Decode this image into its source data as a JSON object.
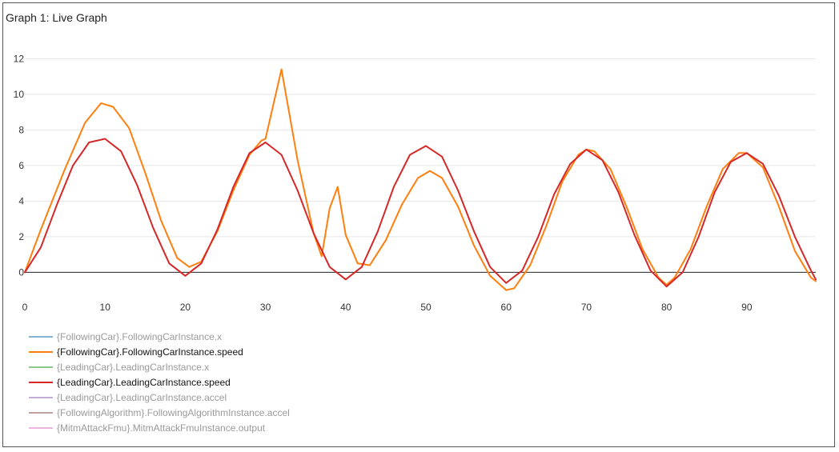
{
  "panel": {
    "title": "Graph 1: Live Graph"
  },
  "chart_data": {
    "type": "line",
    "title": "",
    "xlabel": "",
    "ylabel": "",
    "xlim": [
      0,
      98.6
    ],
    "ylim": [
      -1.6,
      13.5
    ],
    "x_ticks": [
      0,
      10,
      20,
      30,
      40,
      50,
      60,
      70,
      80,
      90
    ],
    "y_ticks": [
      0,
      2,
      4,
      6,
      8,
      10,
      12
    ],
    "grid": "horizontal",
    "legend_position": "bottom-left",
    "series": [
      {
        "name": "{FollowingCar}.FollowingCarInstance.x",
        "color": "#1f77b4",
        "visible": false,
        "points": []
      },
      {
        "name": "{FollowingCar}.FollowingCarInstance.speed",
        "color": "#ff7f0e",
        "visible": true,
        "points": [
          [
            0,
            0
          ],
          [
            2,
            2.4
          ],
          [
            5,
            5.8
          ],
          [
            7.5,
            8.4
          ],
          [
            9.5,
            9.5
          ],
          [
            11,
            9.3
          ],
          [
            13,
            8.1
          ],
          [
            15,
            5.6
          ],
          [
            17,
            2.9
          ],
          [
            19,
            0.8
          ],
          [
            20.5,
            0.3
          ],
          [
            22,
            0.6
          ],
          [
            24,
            2.3
          ],
          [
            26,
            4.6
          ],
          [
            28,
            6.6
          ],
          [
            29.5,
            7.4
          ],
          [
            30,
            7.5
          ],
          [
            32,
            11.4
          ],
          [
            34,
            6.3
          ],
          [
            36,
            2.2
          ],
          [
            37,
            0.9
          ],
          [
            38,
            3.6
          ],
          [
            39,
            4.8
          ],
          [
            40,
            2.1
          ],
          [
            41.5,
            0.5
          ],
          [
            43,
            0.4
          ],
          [
            45,
            1.8
          ],
          [
            47,
            3.8
          ],
          [
            49,
            5.3
          ],
          [
            50.5,
            5.7
          ],
          [
            52,
            5.3
          ],
          [
            54,
            3.7
          ],
          [
            56,
            1.5
          ],
          [
            58,
            -0.2
          ],
          [
            60,
            -1.0
          ],
          [
            61,
            -0.9
          ],
          [
            63,
            0.4
          ],
          [
            65,
            2.6
          ],
          [
            67,
            5.1
          ],
          [
            69,
            6.6
          ],
          [
            70,
            6.9
          ],
          [
            71,
            6.8
          ],
          [
            73,
            5.8
          ],
          [
            75,
            3.7
          ],
          [
            77,
            1.3
          ],
          [
            79,
            -0.3
          ],
          [
            80,
            -0.7
          ],
          [
            81,
            -0.3
          ],
          [
            83,
            1.3
          ],
          [
            85,
            3.7
          ],
          [
            87,
            5.8
          ],
          [
            89,
            6.7
          ],
          [
            90,
            6.7
          ],
          [
            92,
            5.9
          ],
          [
            94,
            3.7
          ],
          [
            96,
            1.2
          ],
          [
            98,
            -0.3
          ],
          [
            98.6,
            -0.5
          ]
        ]
      },
      {
        "name": "{LeadingCar}.LeadingCarInstance.x",
        "color": "#2ca02c",
        "visible": false,
        "points": []
      },
      {
        "name": "{LeadingCar}.LeadingCarInstance.speed",
        "color": "#d62728",
        "visible": true,
        "points": [
          [
            0,
            0
          ],
          [
            2,
            1.4
          ],
          [
            4,
            3.8
          ],
          [
            6,
            6.0
          ],
          [
            8,
            7.3
          ],
          [
            10,
            7.5
          ],
          [
            12,
            6.8
          ],
          [
            14,
            4.9
          ],
          [
            16,
            2.5
          ],
          [
            18,
            0.5
          ],
          [
            20,
            -0.2
          ],
          [
            22,
            0.5
          ],
          [
            24,
            2.4
          ],
          [
            26,
            4.8
          ],
          [
            28,
            6.7
          ],
          [
            30,
            7.3
          ],
          [
            32,
            6.6
          ],
          [
            34,
            4.6
          ],
          [
            36,
            2.2
          ],
          [
            38,
            0.3
          ],
          [
            40,
            -0.4
          ],
          [
            42,
            0.3
          ],
          [
            44,
            2.3
          ],
          [
            46,
            4.8
          ],
          [
            48,
            6.6
          ],
          [
            50,
            7.1
          ],
          [
            52,
            6.5
          ],
          [
            54,
            4.6
          ],
          [
            56,
            2.3
          ],
          [
            58,
            0.3
          ],
          [
            60,
            -0.6
          ],
          [
            62,
            0.1
          ],
          [
            64,
            2.0
          ],
          [
            66,
            4.4
          ],
          [
            68,
            6.1
          ],
          [
            70,
            6.9
          ],
          [
            72,
            6.3
          ],
          [
            74,
            4.5
          ],
          [
            76,
            2.1
          ],
          [
            78,
            0.1
          ],
          [
            80,
            -0.8
          ],
          [
            82,
            0.0
          ],
          [
            84,
            2.0
          ],
          [
            86,
            4.5
          ],
          [
            88,
            6.2
          ],
          [
            90,
            6.7
          ],
          [
            92,
            6.1
          ],
          [
            94,
            4.3
          ],
          [
            96,
            2.0
          ],
          [
            98,
            0.1
          ],
          [
            98.6,
            -0.4
          ]
        ]
      },
      {
        "name": "{LeadingCar}.LeadingCarInstance.accel",
        "color": "#9467bd",
        "visible": false,
        "points": []
      },
      {
        "name": "{FollowingAlgorithm}.FollowingAlgorithmInstance.accel",
        "color": "#8c564b",
        "visible": false,
        "points": []
      },
      {
        "name": "{MitmAttackFmu}.MitmAttackFmuInstance.output",
        "color": "#e377c2",
        "visible": false,
        "points": []
      }
    ]
  },
  "legend_colors": {
    "active_text": "#111111",
    "inactive_text": "#9a9a9a",
    "inactive_line_opacity": "0.55"
  }
}
